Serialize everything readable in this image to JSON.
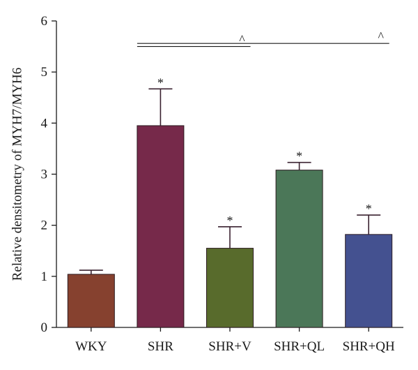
{
  "chart_data": {
    "type": "bar",
    "title": "",
    "xlabel": "",
    "ylabel": "Relative densitometry of MYH7/MYH6",
    "ylim": [
      0,
      6
    ],
    "yticks": [
      "0",
      "1",
      "2",
      "3",
      "4",
      "5",
      "6"
    ],
    "categories": [
      "WKY",
      "SHR",
      "SHR+V",
      "SHR+QL",
      "SHR+QH"
    ],
    "values": [
      1.04,
      3.95,
      1.55,
      3.08,
      1.82
    ],
    "errors": [
      0.08,
      0.72,
      0.42,
      0.15,
      0.38
    ],
    "bar_colors": [
      "#86412f",
      "#76294a",
      "#586b2c",
      "#4b7758",
      "#445190"
    ],
    "significance_marks": [
      "*",
      "*",
      "*",
      "*"
    ],
    "significance_categories": [
      "SHR",
      "SHR+V",
      "SHR+QL",
      "SHR+QH"
    ],
    "comparisons": [
      {
        "from": "SHR",
        "to": "SHR+V",
        "y": 5.5,
        "label": "^"
      },
      {
        "from": "SHR",
        "to": "SHR+QH",
        "y": 5.56,
        "label": "^"
      }
    ],
    "grid": false,
    "legend": "none"
  }
}
